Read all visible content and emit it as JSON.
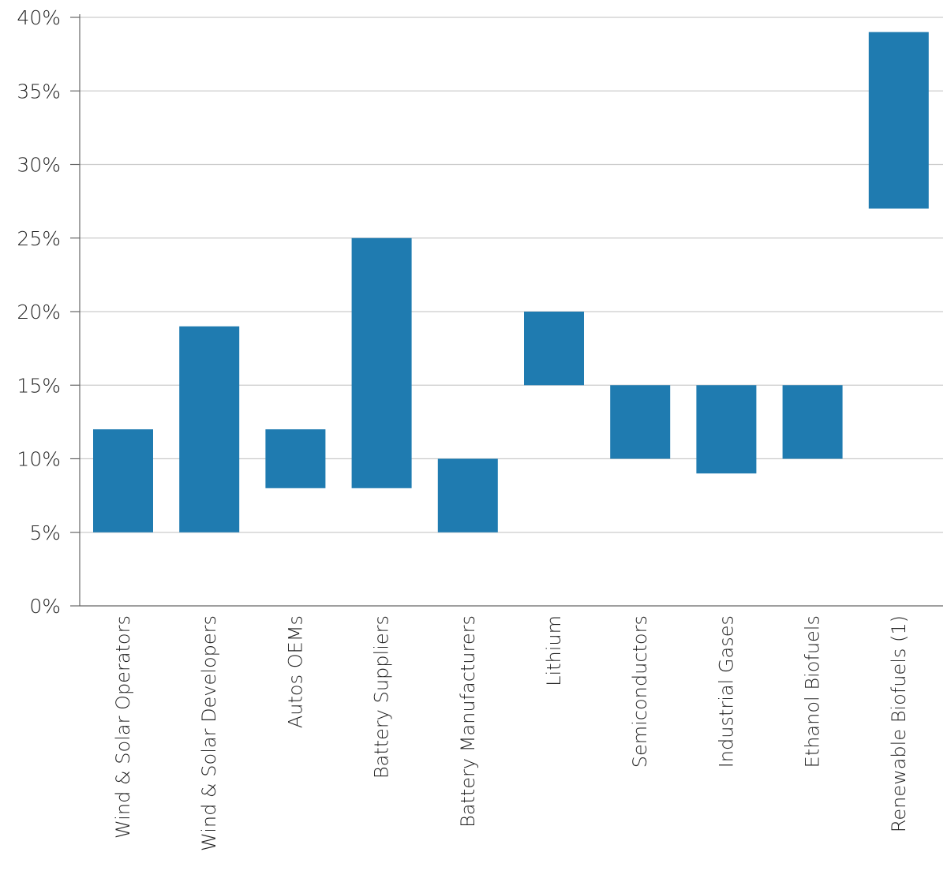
{
  "chart_data": {
    "type": "bar",
    "subtype": "floating-range",
    "categories": [
      "Wind & Solar Operators",
      "Wind & Solar Developers",
      "Autos OEMs",
      "Battery Suppliers",
      "Battery Manufacturers",
      "Lithium",
      "Semiconductors",
      "Industrial Gases",
      "Ethanol Biofuels",
      "Renewable Biofuels (1)"
    ],
    "ranges": [
      [
        5,
        12
      ],
      [
        5,
        19
      ],
      [
        8,
        12
      ],
      [
        8,
        25
      ],
      [
        5,
        10
      ],
      [
        15,
        20
      ],
      [
        10,
        15
      ],
      [
        9,
        15
      ],
      [
        10,
        15
      ],
      [
        27,
        39
      ]
    ],
    "yticks": [
      "0%",
      "5%",
      "10%",
      "15%",
      "20%",
      "25%",
      "30%",
      "35%",
      "40%"
    ],
    "ylim": [
      0,
      40
    ],
    "grid": true,
    "legend": "none",
    "bar_color": "#1f7bb0",
    "grid_color": "#cccccc",
    "axis_color": "#666666"
  }
}
